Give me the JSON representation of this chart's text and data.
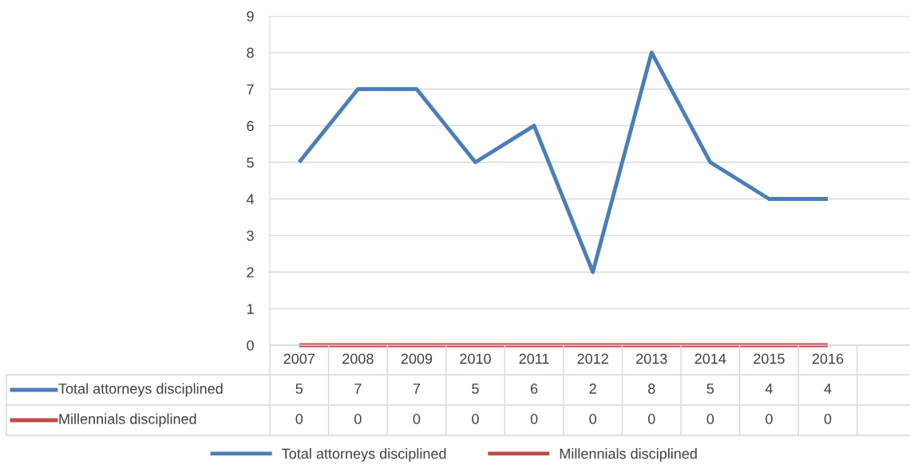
{
  "chart_data": {
    "type": "line",
    "categories": [
      "2007",
      "2008",
      "2009",
      "2010",
      "2011",
      "2012",
      "2013",
      "2014",
      "2015",
      "2016"
    ],
    "series": [
      {
        "name": "Total attorneys disciplined",
        "color": "#4a7ebb",
        "values": [
          5,
          7,
          7,
          5,
          6,
          2,
          8,
          5,
          4,
          4
        ]
      },
      {
        "name": "Millennials disciplined",
        "color": "#be4b48",
        "values": [
          0,
          0,
          0,
          0,
          0,
          0,
          0,
          0,
          0,
          0
        ]
      }
    ],
    "ylim": [
      0,
      9
    ],
    "yticks": [
      0,
      1,
      2,
      3,
      4,
      5,
      6,
      7,
      8,
      9
    ],
    "grid": "y",
    "legend": "bottom",
    "data_labels": true,
    "marker": "none",
    "line_style": "solid"
  }
}
